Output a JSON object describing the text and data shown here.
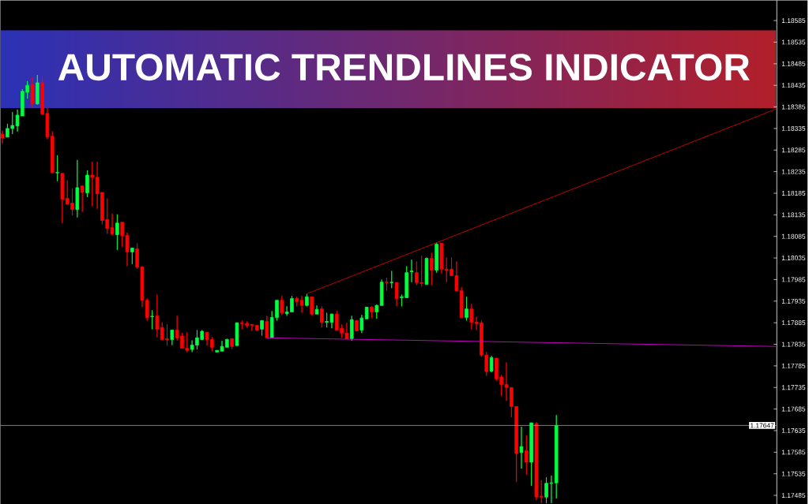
{
  "chart_data": {
    "type": "candlestick",
    "title": "AUTOMATIC TRENDLINES INDICATOR",
    "categories": [
      null,
      null,
      null,
      null,
      null,
      null,
      null,
      null,
      null,
      null,
      null,
      null,
      null,
      null,
      null,
      null,
      null,
      null,
      null,
      null,
      null,
      null,
      null,
      null,
      null,
      null,
      null,
      null,
      null,
      null,
      null,
      null,
      null,
      null,
      null,
      null,
      null,
      null,
      null,
      null,
      null,
      null,
      null,
      null,
      null,
      null,
      null,
      null,
      null,
      null,
      null,
      null,
      null,
      null,
      null,
      null,
      null,
      null,
      null,
      null,
      null,
      null,
      null,
      null,
      null,
      null,
      null,
      null,
      null,
      null,
      null,
      null,
      null,
      null,
      null,
      null,
      null,
      null,
      null,
      null,
      null,
      null,
      null,
      null,
      null,
      null,
      null,
      null,
      null,
      null,
      null,
      null,
      null,
      null,
      null,
      null,
      null,
      null,
      null,
      null,
      null,
      null,
      null,
      null,
      null,
      null,
      null,
      null,
      null,
      null,
      null,
      null,
      null,
      null,
      null,
      null,
      null,
      null,
      null,
      null,
      null,
      null,
      null,
      null,
      null,
      null,
      null,
      null,
      null,
      null,
      null,
      null,
      null,
      null,
      null,
      null,
      null,
      null,
      null,
      null,
      null,
      null,
      null,
      null,
      null,
      null,
      null,
      null,
      null,
      null,
      null,
      null,
      null,
      null,
      null,
      null
    ],
    "ohlc": [
      [
        1.18322,
        1.1833,
        1.183,
        1.18313
      ],
      [
        1.18315,
        1.18346,
        1.18315,
        1.18335
      ],
      [
        1.18335,
        1.18373,
        1.18322,
        1.18342
      ],
      [
        1.18341,
        1.18379,
        1.18328,
        1.18366
      ],
      [
        1.18364,
        1.18426,
        1.18364,
        1.18421
      ],
      [
        1.18419,
        1.18445,
        1.18404,
        1.18435
      ],
      [
        1.18437,
        1.18455,
        1.18383,
        1.18393
      ],
      [
        1.18392,
        1.18459,
        1.1839,
        1.18441
      ],
      [
        1.18441,
        1.18455,
        1.18368,
        1.18368
      ],
      [
        1.1837,
        1.18383,
        1.1831,
        1.18315
      ],
      [
        1.18317,
        1.18328,
        1.18231,
        1.18233
      ],
      [
        1.18232,
        1.18273,
        1.18213,
        1.18233
      ],
      [
        1.18231,
        1.18231,
        1.18116,
        1.18171
      ],
      [
        1.18173,
        1.18215,
        1.18158,
        1.1816
      ],
      [
        1.18162,
        1.18196,
        1.18134,
        1.18147
      ],
      [
        1.18147,
        1.18262,
        1.18129,
        1.18198
      ],
      [
        1.18202,
        1.18202,
        1.18142,
        1.18187
      ],
      [
        1.18186,
        1.18238,
        1.18176,
        1.18227
      ],
      [
        1.18227,
        1.18258,
        1.18155,
        1.18222
      ],
      [
        1.18222,
        1.18258,
        1.18149,
        1.18184
      ],
      [
        1.18187,
        1.18187,
        1.18113,
        1.18122
      ],
      [
        1.18124,
        1.18173,
        1.18091,
        1.18103
      ],
      [
        1.18105,
        1.18138,
        1.18087,
        1.18091
      ],
      [
        1.18089,
        1.18136,
        1.18054,
        1.18116
      ],
      [
        1.18118,
        1.18118,
        1.18061,
        1.18087
      ],
      [
        1.18087,
        1.18094,
        1.18016,
        1.18049
      ],
      [
        1.18049,
        1.18058,
        1.18021,
        1.18058
      ],
      [
        1.18056,
        1.18069,
        1.1801,
        1.18014
      ],
      [
        1.18014,
        1.18016,
        1.17921,
        1.17937
      ],
      [
        1.17937,
        1.17941,
        1.1789,
        1.17897
      ],
      [
        1.17899,
        1.17914,
        1.1787,
        1.179
      ],
      [
        1.17901,
        1.1795,
        1.17852,
        1.1787
      ],
      [
        1.17874,
        1.17886,
        1.17846,
        1.17846
      ],
      [
        1.17848,
        1.17881,
        1.17832,
        1.17846
      ],
      [
        1.17846,
        1.17868,
        1.17833,
        1.17868
      ],
      [
        1.17868,
        1.17901,
        1.17844,
        1.1785
      ],
      [
        1.17854,
        1.17861,
        1.17826,
        1.17826
      ],
      [
        1.17826,
        1.17863,
        1.17817,
        1.17821
      ],
      [
        1.17823,
        1.17844,
        1.17817,
        1.17833
      ],
      [
        1.17833,
        1.17868,
        1.17823,
        1.1785
      ],
      [
        1.17846,
        1.17868,
        1.17846,
        1.17865
      ],
      [
        1.17863,
        1.17863,
        1.17832,
        1.17846
      ],
      [
        1.17846,
        1.17852,
        1.17819,
        1.17828
      ],
      [
        1.17817,
        1.17821,
        1.17817,
        1.17821
      ],
      [
        1.17819,
        1.17843,
        1.17819,
        1.1783
      ],
      [
        1.17828,
        1.17848,
        1.17828,
        1.17846
      ],
      [
        1.17848,
        1.17848,
        1.17824,
        1.1783
      ],
      [
        1.17832,
        1.17885,
        1.17832,
        1.17885
      ],
      [
        1.17885,
        1.1789,
        1.1787,
        1.17883
      ],
      [
        1.17883,
        1.17888,
        1.17874,
        1.17879
      ],
      [
        1.17881,
        1.17881,
        1.17866,
        1.17879
      ],
      [
        1.17879,
        1.17879,
        1.17866,
        1.17868
      ],
      [
        1.1787,
        1.1789,
        1.17855,
        1.1789
      ],
      [
        1.17888,
        1.17901,
        1.1785,
        1.1785
      ],
      [
        1.1785,
        1.17912,
        1.1785,
        1.17897
      ],
      [
        1.17897,
        1.17937,
        1.1789,
        1.17937
      ],
      [
        1.17937,
        1.17947,
        1.17903,
        1.17908
      ],
      [
        1.17906,
        1.17923,
        1.17901,
        1.1791
      ],
      [
        1.1791,
        1.17947,
        1.1791,
        1.17941
      ],
      [
        1.17941,
        1.17945,
        1.17923,
        1.17934
      ],
      [
        1.17937,
        1.17947,
        1.17908,
        1.17925
      ],
      [
        1.17925,
        1.17952,
        1.17923,
        1.17945
      ],
      [
        1.17945,
        1.17945,
        1.17901,
        1.17905
      ],
      [
        1.17905,
        1.17925,
        1.17905,
        1.17916
      ],
      [
        1.17917,
        1.17923,
        1.17874,
        1.17886
      ],
      [
        1.17886,
        1.17908,
        1.17874,
        1.17888
      ],
      [
        1.17886,
        1.17906,
        1.17872,
        1.17905
      ],
      [
        1.17905,
        1.17912,
        1.17868,
        1.17868
      ],
      [
        1.17872,
        1.17881,
        1.1785,
        1.17861
      ],
      [
        1.17861,
        1.17885,
        1.17848,
        1.17848
      ],
      [
        1.17848,
        1.17901,
        1.17843,
        1.17892
      ],
      [
        1.1789,
        1.1789,
        1.17865,
        1.17866
      ],
      [
        1.17868,
        1.17903,
        1.17861,
        1.17896
      ],
      [
        1.17894,
        1.17921,
        1.17894,
        1.17921
      ],
      [
        1.17921,
        1.17923,
        1.17896,
        1.1791
      ],
      [
        1.1791,
        1.17927,
        1.17894,
        1.17925
      ],
      [
        1.17925,
        1.17985,
        1.17925,
        1.17979
      ],
      [
        1.17979,
        1.17989,
        1.17959,
        1.17978
      ],
      [
        1.17978,
        1.18005,
        1.17965,
        1.17979
      ],
      [
        1.17978,
        1.17978,
        1.17923,
        1.17941
      ],
      [
        1.17943,
        1.1795,
        1.17923,
        1.17945
      ],
      [
        1.17943,
        1.18016,
        1.17943,
        1.18001
      ],
      [
        1.18003,
        1.18031,
        1.17979,
        1.18005
      ],
      [
        1.18001,
        1.18027,
        1.17972,
        1.17978
      ],
      [
        1.17978,
        1.1804,
        1.17969,
        1.17976
      ],
      [
        1.17974,
        1.18036,
        1.17974,
        1.18034
      ],
      [
        1.18034,
        1.18047,
        1.17972,
        1.18007
      ],
      [
        1.18007,
        1.18071,
        1.18001,
        1.18067
      ],
      [
        1.18069,
        1.18069,
        1.17999,
        1.18009
      ],
      [
        1.18009,
        1.18036,
        1.17979,
        1.18007
      ],
      [
        1.18009,
        1.18036,
        1.17994,
        1.17994
      ],
      [
        1.17994,
        1.18027,
        1.17959,
        1.17959
      ],
      [
        1.17959,
        1.17967,
        1.17897,
        1.17897
      ],
      [
        1.17897,
        1.17945,
        1.1789,
        1.17917
      ],
      [
        1.17917,
        1.17928,
        1.1787,
        1.17886
      ],
      [
        1.17886,
        1.17899,
        1.17868,
        1.17883
      ],
      [
        1.17885,
        1.1789,
        1.17806,
        1.1781
      ],
      [
        1.1781,
        1.17817,
        1.17762,
        1.17772
      ],
      [
        1.17773,
        1.17808,
        1.1777,
        1.17804
      ],
      [
        1.17803,
        1.17803,
        1.17751,
        1.17755
      ],
      [
        1.17759,
        1.17764,
        1.17715,
        1.17742
      ],
      [
        1.17742,
        1.17793,
        1.17704,
        1.17735
      ],
      [
        1.17735,
        1.17735,
        1.17666,
        1.17691
      ],
      [
        1.17691,
        1.17691,
        1.17516,
        1.17582
      ],
      [
        1.17584,
        1.17644,
        1.17547,
        1.17598
      ],
      [
        1.17589,
        1.17624,
        1.17533,
        1.17562
      ],
      [
        1.17562,
        1.17653,
        1.17507,
        1.17653
      ],
      [
        1.17651,
        1.17655,
        1.17474,
        1.17481
      ],
      [
        1.17483,
        1.1752,
        1.17467,
        1.17481
      ],
      [
        1.17481,
        1.17527,
        1.17467,
        1.17513
      ],
      [
        1.17513,
        1.17531,
        1.17467,
        1.17514
      ],
      [
        1.17514,
        1.17671,
        1.17478,
        1.17647
      ],
      null,
      null,
      null,
      null,
      null,
      null,
      null,
      null,
      null,
      null,
      null,
      null,
      null,
      null,
      null,
      null,
      null,
      null,
      null,
      null,
      null,
      null,
      null,
      null,
      null,
      null,
      null,
      null,
      null,
      null,
      null,
      null,
      null,
      null,
      null,
      null,
      null,
      null,
      null,
      null,
      null,
      null,
      null,
      null
    ],
    "colors": [
      "#ff0000",
      "#00ff40",
      "#00ff40",
      "#00ff40",
      "#00ff40",
      "#00ff40",
      "#ff0000",
      "#00ff40",
      "#ff0000",
      "#ff0000",
      "#ff0000",
      "#00ff40",
      "#ff0000",
      "#ff0000",
      "#ff0000",
      "#00ff40",
      "#ff0000",
      "#00ff40",
      "#ff0000",
      "#ff0000",
      "#ff0000",
      "#ff0000",
      "#ff0000",
      "#00ff40",
      "#ff0000",
      "#ff0000",
      "#00ff40",
      "#ff0000",
      "#ff0000",
      "#ff0000",
      "#00ff40",
      "#ff0000",
      "#ff0000",
      "#ff0000",
      "#00ff40",
      "#ff0000",
      "#ff0000",
      "#ff0000",
      "#00ff40",
      "#00ff40",
      "#00ff40",
      "#ff0000",
      "#ff0000",
      "#00ff40",
      "#00ff40",
      "#00ff40",
      "#ff0000",
      "#00ff40",
      "#ff0000",
      "#ff0000",
      "#ff0000",
      "#ff0000",
      "#00ff40",
      "#ff0000",
      "#00ff40",
      "#00ff40",
      "#ff0000",
      "#00ff40",
      "#00ff40",
      "#ff0000",
      "#ff0000",
      "#00ff40",
      "#ff0000",
      "#00ff40",
      "#ff0000",
      "#00ff40",
      "#00ff40",
      "#ff0000",
      "#ff0000",
      "#ff0000",
      "#00ff40",
      "#ff0000",
      "#00ff40",
      "#00ff40",
      "#ff0000",
      "#00ff40",
      "#00ff40",
      "#ff0000",
      "#00ff40",
      "#ff0000",
      "#00ff40",
      "#00ff40",
      "#00ff40",
      "#ff0000",
      "#ff0000",
      "#00ff40",
      "#ff0000",
      "#00ff40",
      "#ff0000",
      "#ff0000",
      "#ff0000",
      "#ff0000",
      "#ff0000",
      "#00ff40",
      "#ff0000",
      "#ff0000",
      "#ff0000",
      "#ff0000",
      "#00ff40",
      "#ff0000",
      "#ff0000",
      "#ff0000",
      "#ff0000",
      "#ff0000",
      "#00ff40",
      "#ff0000",
      "#00ff40",
      "#ff0000",
      "#ff0000",
      "#00ff40",
      "#00ff40",
      "#00ff40",
      null,
      null,
      null,
      null,
      null,
      null,
      null,
      null,
      null,
      null,
      null,
      null,
      null,
      null,
      null,
      null,
      null,
      null,
      null,
      null,
      null,
      null,
      null,
      null,
      null,
      null,
      null,
      null,
      null,
      null,
      null,
      null,
      null,
      null,
      null,
      null,
      null,
      null,
      null,
      null,
      null,
      null,
      null,
      null
    ],
    "series": [
      {
        "type": "line",
        "color": "#cc0000",
        "values": [
          null,
          null,
          null,
          null,
          null,
          null,
          null,
          null,
          null,
          null,
          null,
          null,
          null,
          null,
          null,
          null,
          null,
          null,
          null,
          null,
          null,
          null,
          null,
          null,
          null,
          null,
          null,
          null,
          null,
          null,
          null,
          null,
          null,
          null,
          null,
          null,
          null,
          null,
          null,
          null,
          null,
          null,
          null,
          null,
          null,
          null,
          null,
          null,
          null,
          null,
          null,
          null,
          null,
          null,
          null,
          null,
          null,
          null,
          null,
          null,
          null,
          1.17952,
          null,
          null,
          null,
          null,
          null,
          null,
          null,
          null,
          null,
          null,
          null,
          null,
          null,
          null,
          null,
          null,
          null,
          null,
          null,
          null,
          null,
          null,
          null,
          null,
          null,
          null,
          null,
          null,
          null,
          null,
          null,
          null,
          null,
          null,
          null,
          null,
          null,
          null,
          null,
          null,
          null,
          null,
          null,
          null,
          null,
          null,
          null,
          null,
          null,
          null,
          null,
          null,
          null,
          null,
          null,
          null,
          null,
          null,
          null,
          null,
          null,
          null,
          null,
          null,
          null,
          null,
          null,
          null,
          null,
          null,
          null,
          null,
          null,
          null,
          null,
          null,
          null,
          null,
          null,
          null,
          null,
          null,
          null,
          null,
          null,
          null,
          null,
          null,
          null,
          null,
          null,
          null,
          null,
          1.1838
        ]
      },
      {
        "type": "line",
        "color": "#cc00cc",
        "values": [
          null,
          null,
          null,
          null,
          null,
          null,
          null,
          null,
          null,
          null,
          null,
          null,
          null,
          null,
          null,
          null,
          null,
          null,
          null,
          null,
          null,
          null,
          null,
          null,
          null,
          null,
          null,
          null,
          null,
          null,
          null,
          null,
          null,
          null,
          null,
          null,
          null,
          null,
          null,
          null,
          null,
          null,
          null,
          null,
          null,
          null,
          null,
          null,
          null,
          null,
          null,
          null,
          null,
          1.1785,
          null,
          null,
          null,
          null,
          null,
          null,
          null,
          null,
          null,
          null,
          null,
          null,
          null,
          null,
          null,
          null,
          null,
          null,
          null,
          null,
          null,
          null,
          null,
          null,
          null,
          null,
          null,
          null,
          null,
          null,
          null,
          null,
          null,
          null,
          null,
          null,
          null,
          null,
          null,
          null,
          null,
          null,
          null,
          null,
          null,
          null,
          null,
          null,
          null,
          null,
          null,
          null,
          null,
          null,
          null,
          null,
          null,
          null,
          null,
          null,
          null,
          null,
          null,
          null,
          null,
          null,
          null,
          null,
          null,
          null,
          null,
          null,
          null,
          null,
          null,
          null,
          null,
          null,
          null,
          null,
          null,
          null,
          null,
          null,
          null,
          null,
          null,
          null,
          null,
          null,
          null,
          null,
          null,
          null,
          null,
          null,
          null,
          null,
          null,
          null,
          null,
          1.1783
        ]
      }
    ],
    "ref_lines": [
      {
        "axis": "y",
        "value": 1.17647,
        "label": "1.17647",
        "color": "#a0a0a0"
      }
    ],
    "ylim": [
      1.17465,
      1.18632
    ],
    "yticks": [
      1.17485,
      1.17535,
      1.17585,
      1.17635,
      1.17685,
      1.17735,
      1.17785,
      1.17835,
      1.17885,
      1.17935,
      1.17985,
      1.18035,
      1.18085,
      1.18135,
      1.18185,
      1.18235,
      1.18285,
      1.18335,
      1.18385,
      1.18435,
      1.18485,
      1.18535,
      1.18585
    ],
    "tick_labels": "y"
  }
}
